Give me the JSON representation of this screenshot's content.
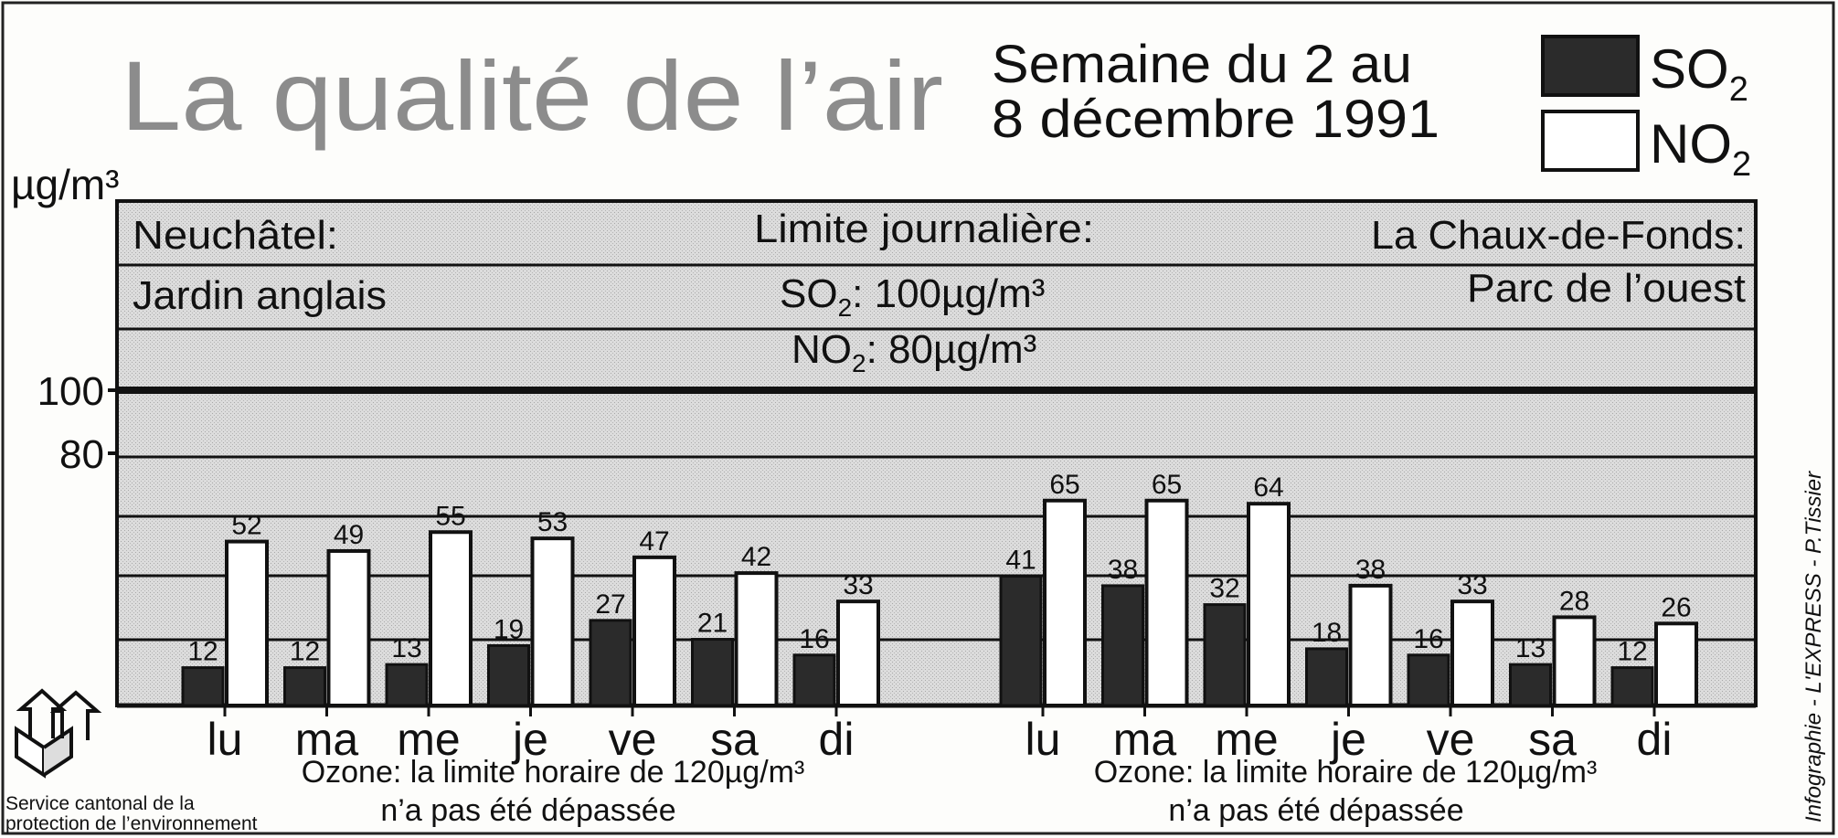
{
  "header": {
    "title": "La qualité de l’air",
    "week_line1": "Semaine du 2 au",
    "week_line2": "8 décembre 1991"
  },
  "legend": [
    {
      "label": "SO",
      "sub": "2",
      "color": "#2b2b2b"
    },
    {
      "label": "NO",
      "sub": "2",
      "color": "#ffffff"
    }
  ],
  "panel": {
    "left_station_city": "Neuchâtel:",
    "left_station_site": "Jardin anglais",
    "limits_title": "Limite journalière:",
    "limit_so2_a": "SO",
    "limit_so2_sub": "2",
    "limit_so2_b": ": 100µg/m³",
    "limit_no2_a": "NO",
    "limit_no2_sub": "2",
    "limit_no2_b": ": 80µg/m³",
    "right_station_city": "La Chaux-de-Fonds:",
    "right_station_site": "Parc de l’ouest"
  },
  "ozone_notes": [
    {
      "line1": "Ozone: la limite horaire de 120µg/m³",
      "line2": "n’a pas été dépassée"
    },
    {
      "line1": "Ozone: la limite horaire de 120µg/m³",
      "line2": "n’a pas été dépassée"
    }
  ],
  "footer": {
    "agency_line1": "Service cantonal de la",
    "agency_line2": "protection de l’environnement",
    "credit": "Infographie - L'EXPRESS - P.Tissier"
  },
  "colors": {
    "so2": "#2b2b2b",
    "no2": "#ffffff",
    "panel": "#d8d8d8",
    "band_alt": "#cbcbcb",
    "title": "#8c8c8c"
  },
  "chart_data": {
    "type": "bar",
    "ylabel": "µg/m³",
    "ylim": [
      0,
      100
    ],
    "yticks": [
      80,
      100
    ],
    "groups": [
      {
        "station": "Neuchâtel",
        "categories": [
          "lu",
          "ma",
          "me",
          "je",
          "ve",
          "sa",
          "di"
        ],
        "series": [
          {
            "name": "SO2",
            "values": [
              12,
              12,
              13,
              19,
              27,
              21,
              16
            ]
          },
          {
            "name": "NO2",
            "values": [
              52,
              49,
              55,
              53,
              47,
              42,
              33
            ]
          }
        ]
      },
      {
        "station": "La Chaux-de-Fonds",
        "categories": [
          "lu",
          "ma",
          "me",
          "je",
          "ve",
          "sa",
          "di"
        ],
        "series": [
          {
            "name": "SO2",
            "values": [
              41,
              38,
              32,
              18,
              16,
              13,
              12
            ]
          },
          {
            "name": "NO2",
            "values": [
              65,
              65,
              64,
              38,
              33,
              28,
              26
            ]
          }
        ]
      }
    ]
  }
}
